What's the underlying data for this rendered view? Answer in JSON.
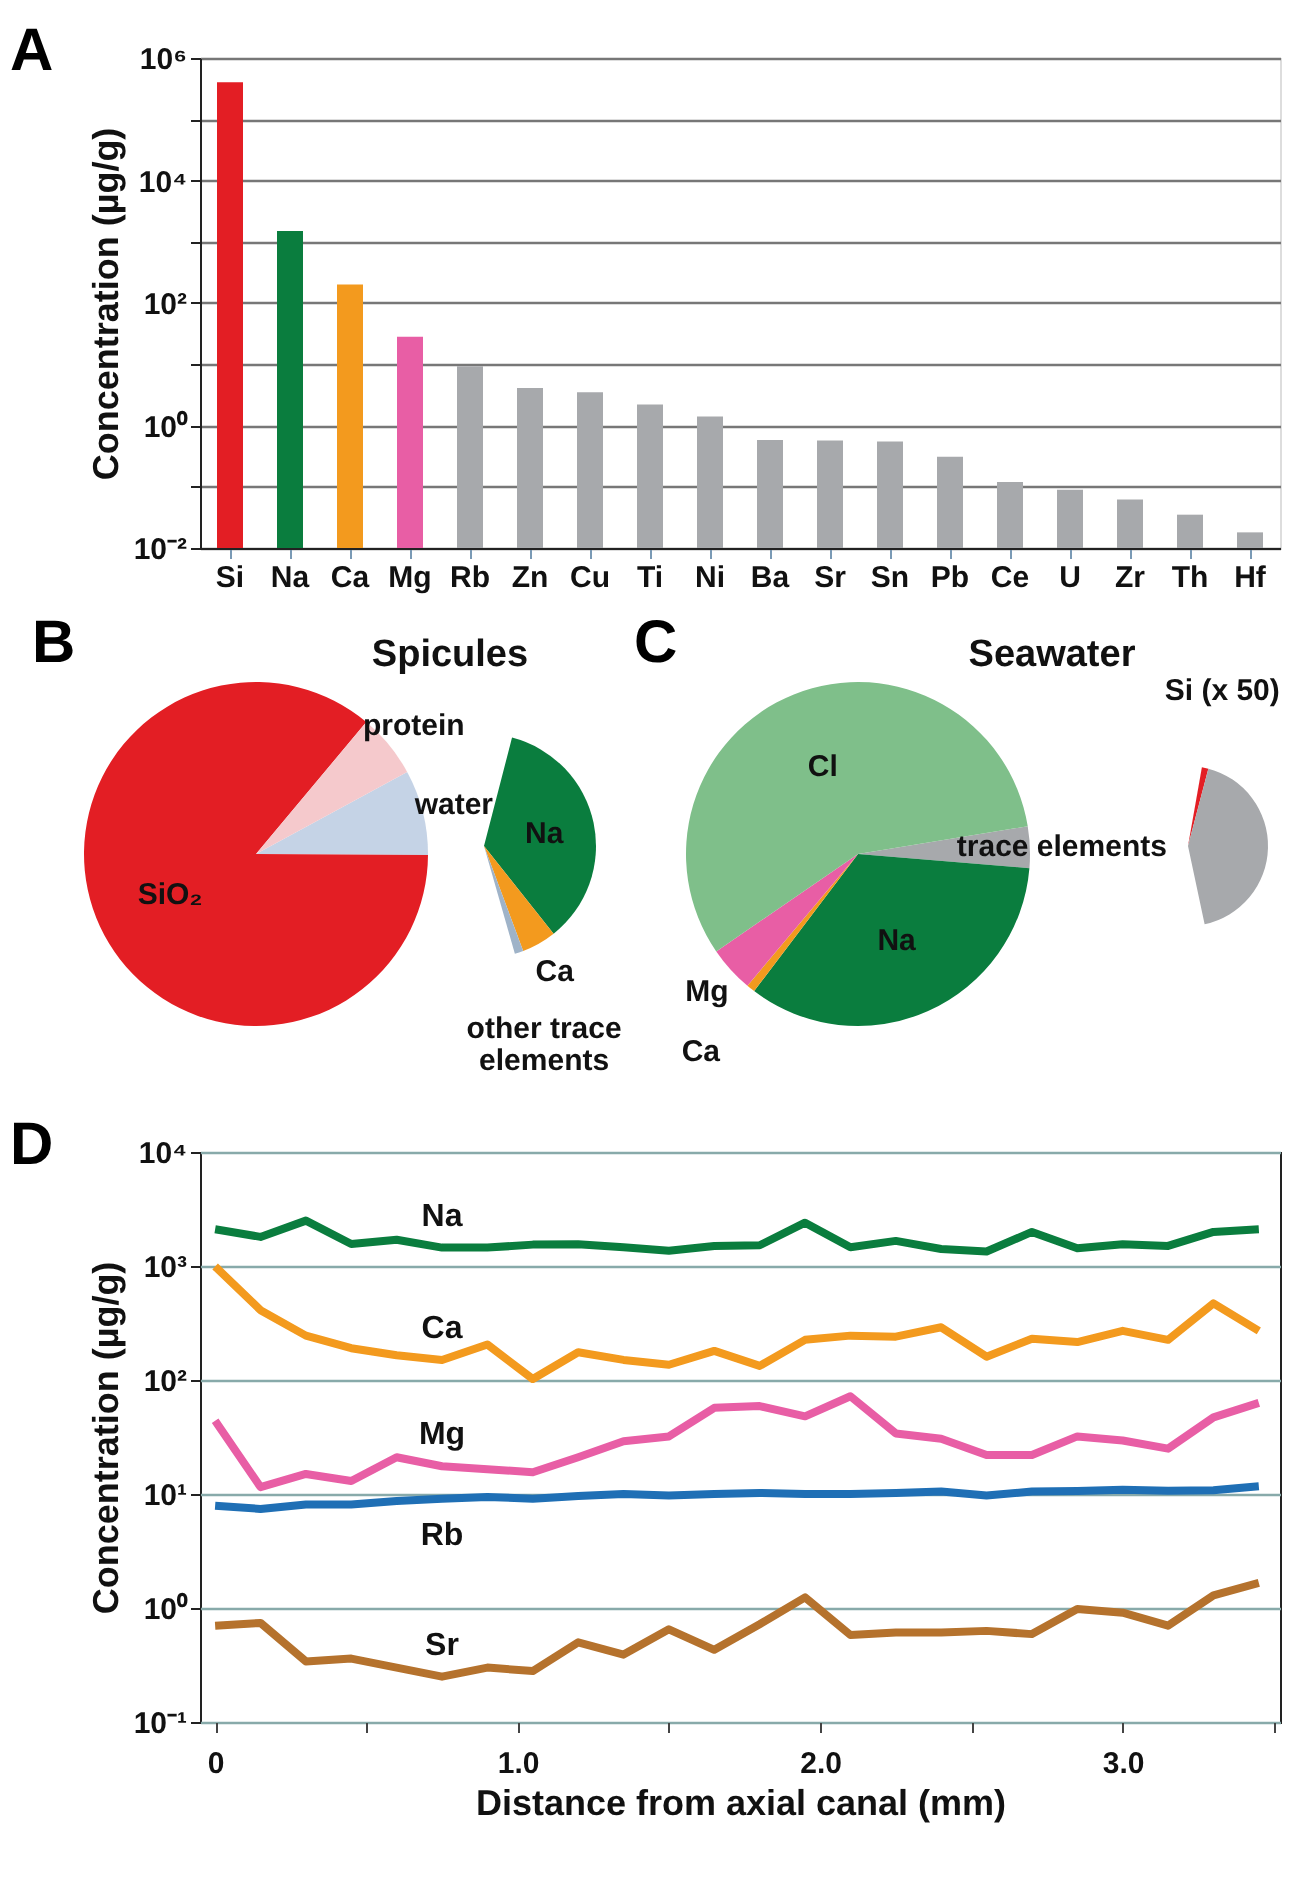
{
  "chart_data": [
    {
      "type": "bar",
      "annotations": [
        "A"
      ],
      "ylabel": "Concentration (µg/g)",
      "categories": [
        "Si",
        "Na",
        "Ca",
        "Mg",
        "Rb",
        "Zn",
        "Cu",
        "Ti",
        "Ni",
        "Ba",
        "Sr",
        "Sn",
        "Pb",
        "Ce",
        "U",
        "Zr",
        "Th",
        "Hf"
      ],
      "values": [
        400000,
        1500,
        200,
        28,
        9.3,
        4.1,
        3.5,
        2.2,
        1.4,
        0.58,
        0.57,
        0.55,
        0.31,
        0.12,
        0.089,
        0.062,
        0.035,
        0.018
      ],
      "colors": [
        "#e31e24",
        "#0a7d3e",
        "#f39a1e",
        "#e85ea5",
        "#a7a9ac",
        "#a7a9ac",
        "#a7a9ac",
        "#a7a9ac",
        "#a7a9ac",
        "#a7a9ac",
        "#a7a9ac",
        "#a7a9ac",
        "#a7a9ac",
        "#a7a9ac",
        "#a7a9ac",
        "#a7a9ac",
        "#a7a9ac",
        "#a7a9ac"
      ],
      "log": true,
      "ylim": [
        0.01,
        1000000
      ],
      "yticks": [
        {
          "value": 0.01,
          "label": "10⁻²"
        },
        {
          "value": 0.1,
          "label": null
        },
        {
          "value": 1,
          "label": "10⁰"
        },
        {
          "value": 10,
          "label": null
        },
        {
          "value": 100,
          "label": "10²"
        },
        {
          "value": 1000,
          "label": null
        },
        {
          "value": 10000,
          "label": "10⁴"
        },
        {
          "value": 100000,
          "label": null
        },
        {
          "value": 1000000,
          "label": "10⁶"
        }
      ],
      "grid": "y"
    },
    {
      "type": "pie",
      "title": "Spicules",
      "annotations": [
        "B"
      ],
      "categories": [
        "water",
        "SiO₂",
        "protein"
      ],
      "values": [
        8,
        86,
        6
      ],
      "colors": [
        "#c5d3e6",
        "#e31e24",
        "#f5c9cc"
      ]
    },
    {
      "type": "pie",
      "categories": [
        "Na",
        "Ca",
        "other trace elements"
      ],
      "values": [
        85,
        12,
        3
      ],
      "colors": [
        "#0a7d3e",
        "#f39a1e",
        "#9fb3c8"
      ]
    },
    {
      "type": "pie",
      "title": "Seawater",
      "annotations": [
        "C"
      ],
      "categories": [
        "trace elements",
        "Na",
        "Ca",
        "Mg",
        "Cl"
      ],
      "values": [
        3.9,
        34,
        0.8,
        4.3,
        57
      ],
      "colors": [
        "#a7a9ac",
        "#0a7d3e",
        "#f39a1e",
        "#e85ea5",
        "#7fbf8a"
      ]
    },
    {
      "type": "pie",
      "categories": [
        "Si (x 50)",
        null
      ],
      "values": [
        3,
        97
      ],
      "colors": [
        "#e31e24",
        "#a7a9ac"
      ]
    },
    {
      "type": "line",
      "annotations": [
        "D"
      ],
      "xlabel": "Distance from axial canal (mm)",
      "ylabel": "Concentration (µg/g)",
      "log": true,
      "grid": "y",
      "x": [
        0,
        0.15,
        0.3,
        0.45,
        0.6,
        0.75,
        0.9,
        1.05,
        1.2,
        1.35,
        1.5,
        1.65,
        1.8,
        1.95,
        2.1,
        2.25,
        2.4,
        2.55,
        2.7,
        2.85,
        3.0,
        3.15,
        3.3,
        3.45
      ],
      "xlim": [
        -0.05,
        3.52
      ],
      "xticks": [
        {
          "value": 0,
          "label": "0"
        },
        {
          "value": 0.5,
          "label": null
        },
        {
          "value": 1,
          "label": "1.0"
        },
        {
          "value": 1.5,
          "label": null
        },
        {
          "value": 2,
          "label": "2.0"
        },
        {
          "value": 2.5,
          "label": null
        },
        {
          "value": 3,
          "label": "3.0"
        },
        {
          "value": 3.5,
          "label": null
        }
      ],
      "ylim": [
        0.1,
        10000
      ],
      "yticks": [
        {
          "value": 0.1,
          "label": "10⁻¹"
        },
        {
          "value": 1,
          "label": "10⁰"
        },
        {
          "value": 10,
          "label": "10¹"
        },
        {
          "value": 100,
          "label": "10²"
        },
        {
          "value": 1000,
          "label": "10³"
        },
        {
          "value": 10000,
          "label": "10⁴"
        }
      ],
      "series": [
        {
          "name": "Na",
          "color": "#0a7d3e",
          "values": [
            2100,
            1800,
            2500,
            1560,
            1700,
            1450,
            1450,
            1540,
            1550,
            1460,
            1360,
            1500,
            1520,
            2400,
            1460,
            1660,
            1410,
            1340,
            1990,
            1430,
            1550,
            1500,
            1990,
            2100
          ]
        },
        {
          "name": "Ca",
          "color": "#f39a1e",
          "values": [
            990,
            410,
            245,
            190,
            165,
            150,
            205,
            102,
            175,
            150,
            136,
            180,
            133,
            225,
            245,
            240,
            290,
            160,
            230,
            215,
            270,
            225,
            470,
            270
          ]
        },
        {
          "name": "Mg",
          "color": "#e85ea5",
          "values": [
            44,
            11.5,
            15,
            13,
            21,
            17.5,
            16.5,
            15.5,
            21,
            29,
            32,
            57,
            59,
            48,
            72,
            34,
            30.5,
            22,
            22,
            32,
            29.5,
            25,
            47,
            63
          ]
        },
        {
          "name": "Rb",
          "color": "#1f6fb5",
          "values": [
            7.9,
            7.4,
            8.1,
            8.1,
            8.7,
            9.1,
            9.4,
            9.1,
            9.6,
            10,
            9.7,
            10,
            10.2,
            10,
            10,
            10.2,
            10.5,
            9.7,
            10.5,
            10.6,
            10.9,
            10.7,
            10.8,
            11.7
          ]
        },
        {
          "name": "Sr",
          "color": "#b5722d",
          "values": [
            0.7,
            0.74,
            0.34,
            0.36,
            0.3,
            0.25,
            0.3,
            0.28,
            0.5,
            0.39,
            0.65,
            0.43,
            0.72,
            1.24,
            0.58,
            0.61,
            0.61,
            0.63,
            0.59,
            0.98,
            0.91,
            0.7,
            1.29,
            1.66
          ]
        }
      ]
    }
  ]
}
